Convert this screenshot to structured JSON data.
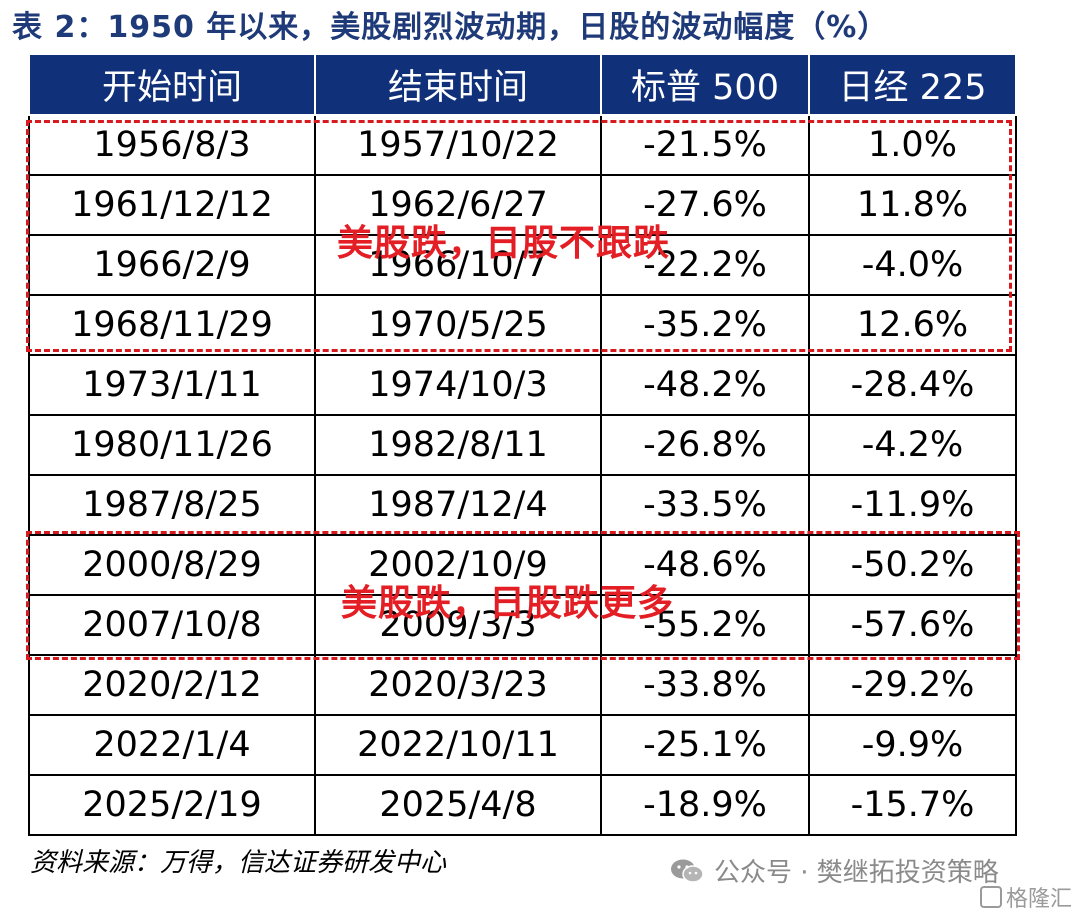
{
  "title": "表 2：1950 年以来，美股剧烈波动期，日股的波动幅度（%）",
  "table": {
    "headers": [
      "开始时间",
      "结束时间",
      "标普 500",
      "日经 225"
    ],
    "rows": [
      [
        "1956/8/3",
        "1957/10/22",
        "-21.5%",
        "1.0%"
      ],
      [
        "1961/12/12",
        "1962/6/27",
        "-27.6%",
        "11.8%"
      ],
      [
        "1966/2/9",
        "1966/10/7",
        "-22.2%",
        "-4.0%"
      ],
      [
        "1968/11/29",
        "1970/5/25",
        "-35.2%",
        "12.6%"
      ],
      [
        "1973/1/11",
        "1974/10/3",
        "-48.2%",
        "-28.4%"
      ],
      [
        "1980/11/26",
        "1982/8/11",
        "-26.8%",
        "-4.2%"
      ],
      [
        "1987/8/25",
        "1987/12/4",
        "-33.5%",
        "-11.9%"
      ],
      [
        "2000/8/29",
        "2002/10/9",
        "-48.6%",
        "-50.2%"
      ],
      [
        "2007/10/8",
        "2009/3/3",
        "-55.2%",
        "-57.6%"
      ],
      [
        "2020/2/12",
        "2020/3/23",
        "-33.8%",
        "-29.2%"
      ],
      [
        "2022/1/4",
        "2022/10/11",
        "-25.1%",
        "-9.9%"
      ],
      [
        "2025/2/19",
        "2025/4/8",
        "-18.9%",
        "-15.7%"
      ]
    ]
  },
  "annotations": {
    "box1_label": "美股跌，日股不跟跌",
    "box2_label": "美股跌，日股跌更多",
    "color": "#e31e24"
  },
  "source": "资料来源：万得，信达证券研发中心",
  "watermark": "公众号 · 樊继拓投资策略",
  "logo": "格隆汇",
  "colors": {
    "header_bg": "#10307a",
    "title": "#1f3a78"
  },
  "icons": {
    "watermark": "wechat-icon",
    "logo": "gelonghui-logo-icon"
  }
}
